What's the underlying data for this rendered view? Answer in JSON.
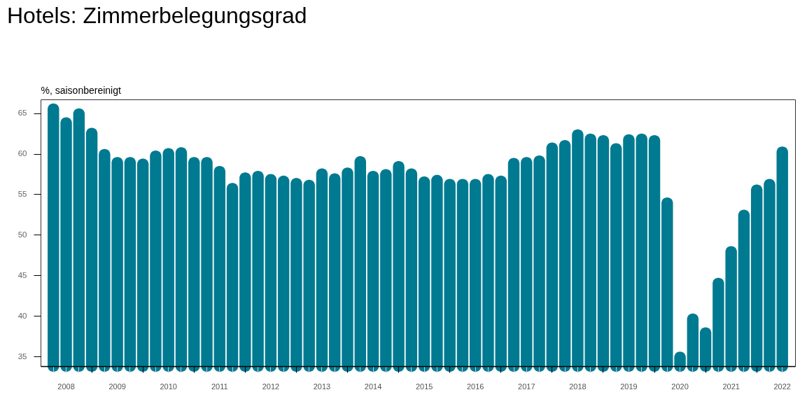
{
  "chart_data": {
    "type": "bar",
    "title": "Hotels: Zimmerbelegungsgrad",
    "ylabel": "%, saisonbereinigt",
    "categories": [
      null,
      "2008",
      null,
      null,
      null,
      "2009",
      null,
      null,
      null,
      "2010",
      null,
      null,
      null,
      "2011",
      null,
      null,
      null,
      "2012",
      null,
      null,
      null,
      "2013",
      null,
      null,
      null,
      "2014",
      null,
      null,
      null,
      "2015",
      null,
      null,
      null,
      "2016",
      null,
      null,
      null,
      "2017",
      null,
      null,
      null,
      "2018",
      null,
      null,
      null,
      "2019",
      null,
      null,
      null,
      "2020",
      null,
      null,
      null,
      "2021",
      null,
      null,
      null,
      "2022"
    ],
    "values": [
      66.2,
      64.5,
      65.6,
      63.2,
      60.6,
      59.6,
      59.6,
      59.4,
      60.4,
      60.7,
      60.8,
      59.6,
      59.6,
      58.5,
      56.4,
      57.7,
      57.9,
      57.5,
      57.3,
      57.0,
      56.8,
      58.2,
      57.6,
      58.3,
      59.7,
      57.9,
      58.1,
      59.1,
      58.2,
      57.2,
      57.4,
      56.9,
      56.9,
      56.9,
      57.5,
      57.3,
      59.5,
      59.6,
      59.8,
      61.4,
      61.7,
      63.0,
      62.5,
      62.3,
      61.3,
      62.4,
      62.5,
      62.3,
      54.6,
      35.6,
      40.3,
      38.6,
      44.7,
      48.6,
      53.1,
      56.2,
      56.9,
      60.9
    ],
    "color": "#007a91",
    "ylim": [
      33.8,
      66.7
    ],
    "yticks": [
      35,
      40,
      45,
      50,
      55,
      60,
      65
    ]
  }
}
